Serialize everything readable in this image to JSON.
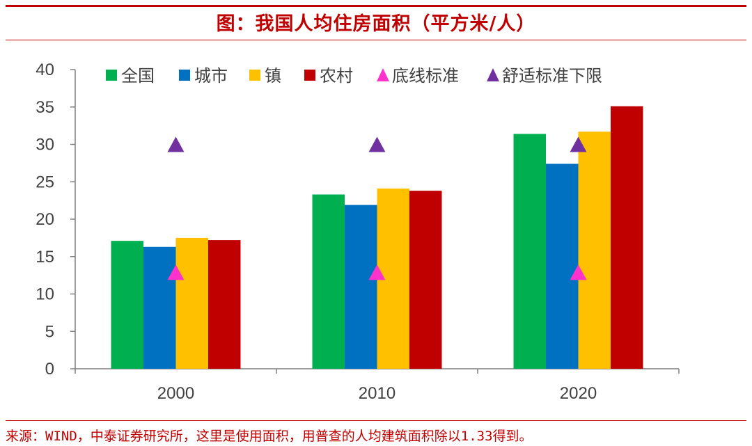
{
  "title": "图：我国人均住房面积（平方米/人）",
  "source": "来源：WIND，中泰证券研究所，这里是使用面积，用普查的人均建筑面积除以1.33得到。",
  "chart_data": {
    "type": "bar",
    "categories": [
      "2000",
      "2010",
      "2020"
    ],
    "ylim": [
      0,
      40
    ],
    "yticks": [
      0,
      5,
      10,
      15,
      20,
      25,
      30,
      35,
      40
    ],
    "legend_position": "top",
    "series": [
      {
        "name": "全国",
        "color": "#00b050",
        "values": [
          17.1,
          23.3,
          31.4
        ]
      },
      {
        "name": "城市",
        "color": "#0070c0",
        "values": [
          16.3,
          21.9,
          27.4
        ]
      },
      {
        "name": "镇",
        "color": "#ffc000",
        "values": [
          17.5,
          24.1,
          31.7
        ]
      },
      {
        "name": "农村",
        "color": "#c00000",
        "values": [
          17.2,
          23.8,
          35.1
        ]
      }
    ],
    "markers": [
      {
        "name": "底线标准",
        "color": "#ff33cc",
        "shape": "triangle",
        "values": [
          12.9,
          12.9,
          12.9
        ]
      },
      {
        "name": "舒适标准下限",
        "color": "#7030a0",
        "shape": "triangle",
        "values": [
          30,
          30,
          30
        ]
      }
    ]
  }
}
